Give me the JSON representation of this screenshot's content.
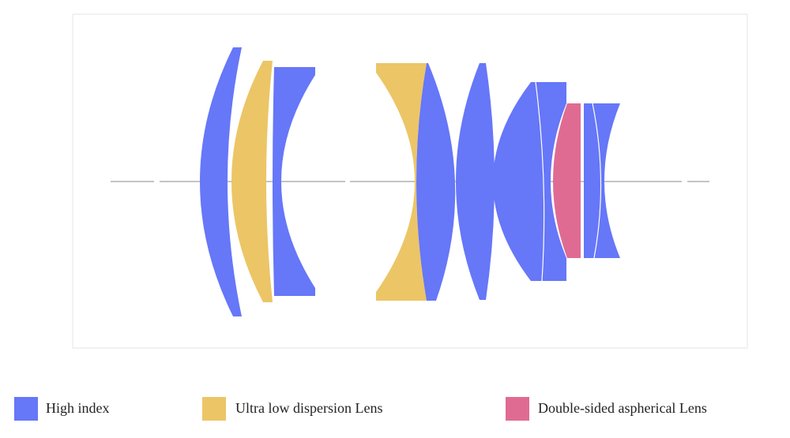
{
  "legend": [
    {
      "label": "High index"
    },
    {
      "label": "Ultra low dispersion Lens"
    },
    {
      "label": "Double-sided aspherical Lens"
    }
  ]
}
